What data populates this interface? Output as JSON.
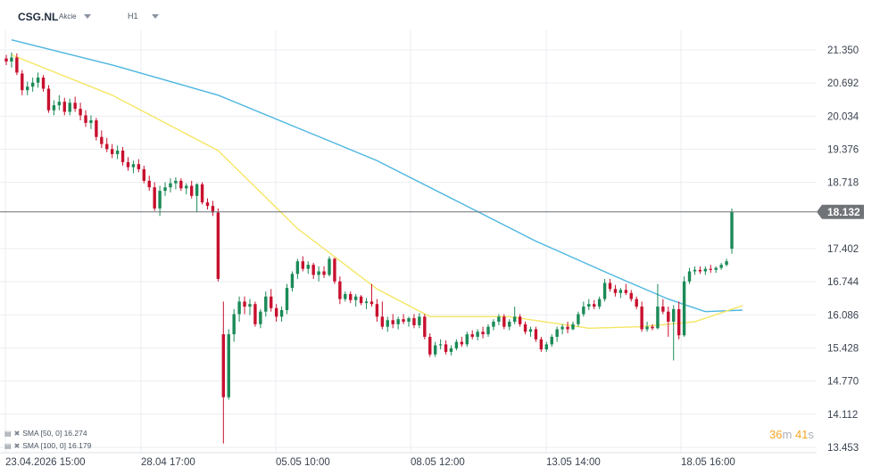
{
  "header": {
    "symbol": "CSG.NL",
    "type": "Akcie",
    "timeframe": "H1"
  },
  "legend": [
    {
      "label": "SMA [50, 0] 16.274",
      "color": "#f5e663"
    },
    {
      "label": "SMA [100, 0] 16.179",
      "color": "#4db6e0"
    }
  ],
  "countdown": {
    "min": "36",
    "min_unit": "m",
    "sec": "41",
    "sec_unit": "s"
  },
  "colors": {
    "up": "#1b8a57",
    "down": "#c8102e",
    "sma50": "#f5e663",
    "sma100": "#4db6e0",
    "grid": "#ebedf0",
    "price_line": "#6b7075",
    "price_label_bg": "#707478",
    "countdown": "#f5a623"
  },
  "chart_data": {
    "type": "candlestick",
    "current_price": "18.132",
    "y_ticks": [
      "21.350",
      "20.692",
      "20.034",
      "19.376",
      "18.718",
      "17.402",
      "16.744",
      "16.086",
      "15.428",
      "14.770",
      "14.112",
      "13.453"
    ],
    "x_ticks": [
      "23.04.2026 15:00",
      "28.04 17:00",
      "05.05 10:00",
      "08.05 12:00",
      "13.05 14:00",
      "18.05 16:00"
    ],
    "ylim": [
      13.453,
      21.6
    ],
    "candles": [
      [
        21.18,
        21.25,
        21.05,
        21.12
      ],
      [
        21.12,
        21.3,
        21.0,
        21.2
      ],
      [
        21.2,
        21.28,
        20.85,
        20.9
      ],
      [
        20.88,
        20.95,
        20.45,
        20.55
      ],
      [
        20.55,
        20.72,
        20.45,
        20.62
      ],
      [
        20.62,
        20.8,
        20.52,
        20.7
      ],
      [
        20.7,
        20.9,
        20.6,
        20.8
      ],
      [
        20.8,
        20.85,
        20.52,
        20.58
      ],
      [
        20.58,
        20.65,
        20.1,
        20.15
      ],
      [
        20.15,
        20.35,
        20.05,
        20.25
      ],
      [
        20.25,
        20.45,
        20.15,
        20.32
      ],
      [
        20.32,
        20.4,
        20.05,
        20.12
      ],
      [
        20.12,
        20.38,
        20.05,
        20.3
      ],
      [
        20.3,
        20.42,
        20.12,
        20.18
      ],
      [
        20.18,
        20.3,
        19.95,
        20.05
      ],
      [
        20.05,
        20.15,
        19.82,
        19.9
      ],
      [
        19.9,
        20.05,
        19.78,
        19.95
      ],
      [
        19.95,
        20.0,
        19.55,
        19.62
      ],
      [
        19.62,
        19.75,
        19.4,
        19.48
      ],
      [
        19.48,
        19.6,
        19.32,
        19.38
      ],
      [
        19.38,
        19.48,
        19.2,
        19.28
      ],
      [
        19.28,
        19.45,
        19.18,
        19.35
      ],
      [
        19.35,
        19.42,
        19.05,
        19.12
      ],
      [
        19.12,
        19.22,
        18.95,
        19.02
      ],
      [
        19.02,
        19.15,
        18.9,
        19.08
      ],
      [
        19.08,
        19.18,
        18.92,
        18.98
      ],
      [
        18.98,
        19.05,
        18.7,
        18.75
      ],
      [
        18.75,
        18.85,
        18.55,
        18.62
      ],
      [
        18.62,
        18.72,
        18.15,
        18.2
      ],
      [
        18.2,
        18.65,
        18.05,
        18.55
      ],
      [
        18.55,
        18.72,
        18.45,
        18.62
      ],
      [
        18.62,
        18.8,
        18.52,
        18.7
      ],
      [
        18.7,
        18.82,
        18.58,
        18.75
      ],
      [
        18.75,
        18.8,
        18.55,
        18.6
      ],
      [
        18.6,
        18.7,
        18.48,
        18.65
      ],
      [
        18.65,
        18.75,
        18.4,
        18.45
      ],
      [
        18.45,
        18.7,
        18.12,
        18.68
      ],
      [
        18.68,
        18.72,
        18.28,
        18.32
      ],
      [
        18.32,
        18.4,
        18.18,
        18.25
      ],
      [
        18.25,
        18.35,
        18.05,
        18.12
      ],
      [
        18.12,
        18.2,
        16.75,
        16.8
      ],
      [
        15.7,
        16.35,
        13.53,
        14.45
      ],
      [
        14.45,
        15.8,
        14.4,
        15.7
      ],
      [
        15.7,
        16.2,
        15.55,
        16.1
      ],
      [
        16.1,
        16.45,
        15.95,
        16.35
      ],
      [
        16.35,
        16.45,
        16.1,
        16.25
      ],
      [
        16.25,
        16.4,
        16.08,
        16.3
      ],
      [
        16.3,
        16.35,
        15.85,
        15.9
      ],
      [
        15.9,
        16.2,
        15.82,
        16.15
      ],
      [
        16.15,
        16.55,
        16.05,
        16.45
      ],
      [
        16.45,
        16.6,
        16.15,
        16.22
      ],
      [
        16.22,
        16.3,
        15.95,
        16.05
      ],
      [
        16.05,
        16.25,
        15.95,
        16.18
      ],
      [
        16.18,
        16.7,
        16.1,
        16.62
      ],
      [
        16.62,
        16.95,
        16.55,
        16.9
      ],
      [
        16.9,
        17.2,
        16.8,
        17.15
      ],
      [
        17.15,
        17.25,
        16.95,
        17.0
      ],
      [
        17.0,
        17.15,
        16.9,
        17.08
      ],
      [
        17.08,
        17.12,
        16.8,
        16.88
      ],
      [
        16.88,
        17.05,
        16.75,
        16.95
      ],
      [
        16.95,
        17.05,
        16.82,
        16.88
      ],
      [
        16.88,
        17.25,
        16.85,
        17.2
      ],
      [
        17.2,
        17.22,
        16.7,
        16.75
      ],
      [
        16.75,
        16.85,
        16.3,
        16.4
      ],
      [
        16.4,
        16.55,
        16.35,
        16.5
      ],
      [
        16.5,
        16.55,
        16.32,
        16.38
      ],
      [
        16.38,
        16.5,
        16.25,
        16.45
      ],
      [
        16.45,
        16.48,
        16.28,
        16.32
      ],
      [
        16.32,
        16.42,
        16.2,
        16.35
      ],
      [
        16.35,
        16.7,
        16.25,
        16.3
      ],
      [
        16.3,
        16.4,
        15.95,
        16.05
      ],
      [
        16.05,
        16.35,
        15.8,
        15.85
      ],
      [
        15.85,
        16.05,
        15.75,
        15.98
      ],
      [
        15.98,
        16.1,
        15.82,
        15.9
      ],
      [
        15.9,
        16.05,
        15.8,
        16.0
      ],
      [
        16.0,
        16.1,
        15.9,
        15.95
      ],
      [
        15.95,
        16.05,
        15.85,
        16.02
      ],
      [
        16.02,
        16.1,
        15.82,
        15.88
      ],
      [
        15.88,
        16.12,
        15.82,
        16.05
      ],
      [
        16.05,
        16.1,
        15.6,
        15.65
      ],
      [
        15.65,
        15.72,
        15.25,
        15.3
      ],
      [
        15.3,
        15.55,
        15.25,
        15.48
      ],
      [
        15.48,
        15.6,
        15.4,
        15.5
      ],
      [
        15.5,
        15.58,
        15.3,
        15.35
      ],
      [
        15.35,
        15.48,
        15.28,
        15.42
      ],
      [
        15.42,
        15.6,
        15.38,
        15.55
      ],
      [
        15.55,
        15.65,
        15.45,
        15.5
      ],
      [
        15.5,
        15.75,
        15.45,
        15.7
      ],
      [
        15.7,
        15.78,
        15.6,
        15.65
      ],
      [
        15.65,
        15.8,
        15.58,
        15.75
      ],
      [
        15.75,
        15.85,
        15.62,
        15.7
      ],
      [
        15.7,
        15.9,
        15.65,
        15.85
      ],
      [
        15.85,
        16.0,
        15.78,
        15.95
      ],
      [
        15.95,
        16.1,
        15.88,
        16.05
      ],
      [
        16.05,
        16.1,
        15.8,
        15.85
      ],
      [
        15.85,
        16.0,
        15.78,
        15.95
      ],
      [
        15.95,
        16.25,
        15.9,
        16.05
      ],
      [
        16.05,
        16.1,
        15.85,
        15.9
      ],
      [
        15.9,
        15.95,
        15.7,
        15.75
      ],
      [
        15.75,
        15.85,
        15.65,
        15.8
      ],
      [
        15.8,
        15.85,
        15.55,
        15.6
      ],
      [
        15.6,
        15.65,
        15.35,
        15.4
      ],
      [
        15.4,
        15.55,
        15.35,
        15.5
      ],
      [
        15.5,
        15.7,
        15.45,
        15.65
      ],
      [
        15.65,
        15.85,
        15.55,
        15.8
      ],
      [
        15.8,
        15.9,
        15.7,
        15.85
      ],
      [
        15.85,
        15.95,
        15.72,
        15.8
      ],
      [
        15.8,
        15.95,
        15.78,
        15.9
      ],
      [
        15.9,
        16.15,
        15.85,
        16.1
      ],
      [
        16.1,
        16.35,
        16.05,
        16.25
      ],
      [
        16.25,
        16.4,
        16.18,
        16.3
      ],
      [
        16.3,
        16.38,
        16.2,
        16.25
      ],
      [
        16.25,
        16.45,
        16.2,
        16.4
      ],
      [
        16.4,
        16.8,
        16.35,
        16.72
      ],
      [
        16.72,
        16.8,
        16.55,
        16.6
      ],
      [
        16.6,
        16.68,
        16.45,
        16.52
      ],
      [
        16.52,
        16.62,
        16.42,
        16.58
      ],
      [
        16.58,
        16.7,
        16.48,
        16.52
      ],
      [
        16.52,
        16.58,
        16.35,
        16.4
      ],
      [
        16.4,
        16.45,
        16.2,
        16.25
      ],
      [
        16.25,
        16.35,
        15.75,
        15.8
      ],
      [
        15.8,
        15.95,
        15.75,
        15.85
      ],
      [
        15.85,
        15.9,
        15.78,
        15.82
      ],
      [
        15.82,
        16.7,
        15.8,
        16.25
      ],
      [
        16.25,
        16.4,
        16.1,
        16.15
      ],
      [
        16.15,
        16.25,
        15.65,
        15.95
      ],
      [
        15.95,
        16.28,
        15.18,
        16.2
      ],
      [
        16.2,
        16.35,
        15.6,
        15.68
      ],
      [
        15.68,
        16.85,
        15.65,
        16.75
      ],
      [
        16.75,
        17.02,
        16.7,
        16.95
      ],
      [
        16.95,
        17.05,
        16.88,
        16.98
      ],
      [
        16.98,
        17.05,
        16.9,
        16.95
      ],
      [
        16.95,
        17.05,
        16.88,
        17.0
      ],
      [
        17.0,
        17.08,
        16.92,
        16.98
      ],
      [
        16.98,
        17.05,
        16.92,
        17.02
      ],
      [
        17.02,
        17.12,
        16.98,
        17.08
      ],
      [
        17.08,
        17.2,
        17.05,
        17.15
      ],
      [
        17.4,
        18.2,
        17.3,
        18.13
      ]
    ],
    "sma50": [
      [
        1,
        21.25
      ],
      [
        20,
        20.45
      ],
      [
        40,
        19.35
      ],
      [
        55,
        17.8
      ],
      [
        70,
        16.6
      ],
      [
        80,
        16.05
      ],
      [
        95,
        16.05
      ],
      [
        110,
        15.82
      ],
      [
        120,
        15.85
      ],
      [
        130,
        15.95
      ],
      [
        139,
        16.27
      ]
    ],
    "sma100": [
      [
        1,
        21.55
      ],
      [
        20,
        21.05
      ],
      [
        40,
        20.45
      ],
      [
        55,
        19.8
      ],
      [
        70,
        19.15
      ],
      [
        85,
        18.35
      ],
      [
        100,
        17.55
      ],
      [
        115,
        16.85
      ],
      [
        125,
        16.4
      ],
      [
        132,
        16.15
      ],
      [
        139,
        16.18
      ]
    ]
  }
}
